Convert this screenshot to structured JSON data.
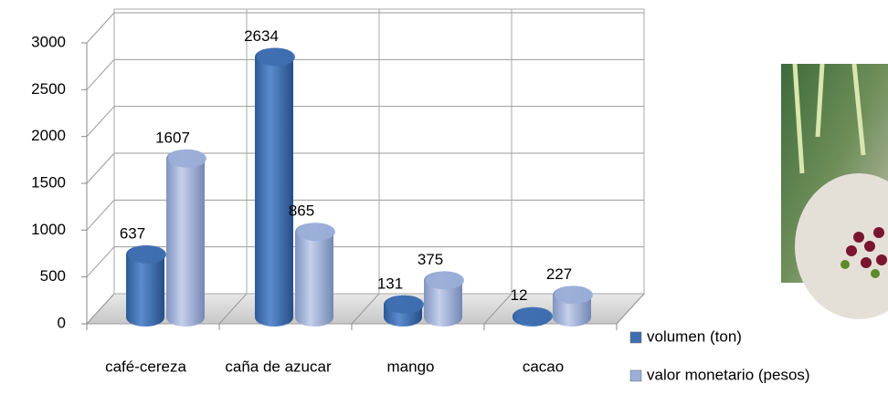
{
  "chart_data": {
    "type": "bar3d",
    "categories": [
      "café-cereza",
      "caña de azucar",
      "mango",
      "cacao"
    ],
    "series": [
      {
        "name": "volumen (ton)",
        "color": "#3f6fb0",
        "values": [
          637,
          2634,
          131,
          12
        ]
      },
      {
        "name": "valor monetario (pesos)",
        "color": "#9aaed8",
        "values": [
          1607,
          865,
          375,
          227
        ]
      }
    ],
    "ylim": [
      0,
      3000
    ],
    "yticks": [
      0,
      500,
      1000,
      1500,
      2000,
      2500,
      3000
    ],
    "grid": true,
    "legend": "bottom-right"
  }
}
